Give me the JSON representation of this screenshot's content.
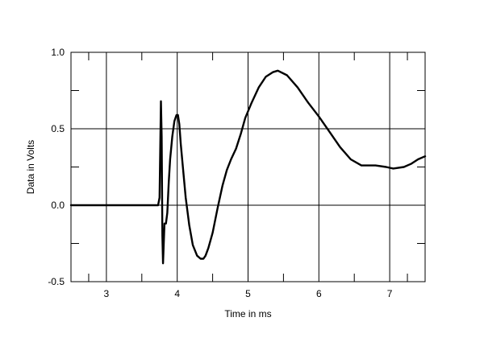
{
  "chart_data": {
    "type": "line",
    "title": "",
    "xlabel": "Time in ms",
    "ylabel": "Data in Volts",
    "xlim": [
      2.5,
      7.5
    ],
    "ylim": [
      -0.5,
      1.0
    ],
    "grid": true,
    "x_ticks": [
      {
        "value": 3,
        "label": "3"
      },
      {
        "value": 4,
        "label": "4"
      },
      {
        "value": 5,
        "label": "5"
      },
      {
        "value": 6,
        "label": "6"
      },
      {
        "value": 7,
        "label": "7"
      }
    ],
    "y_ticks": [
      {
        "value": 1.0,
        "label": "1.0"
      },
      {
        "value": 0.5,
        "label": "0.5"
      },
      {
        "value": 0.0,
        "label": "0.0"
      },
      {
        "value": -0.5,
        "label": "-0.5"
      }
    ],
    "colors": {
      "line": "#000000",
      "grid": "#000000",
      "background": "#ffffff"
    },
    "series": [
      {
        "x": [
          2.5,
          3.0,
          3.5,
          3.73,
          3.75,
          3.77,
          3.78,
          3.79,
          3.8,
          3.81,
          3.82,
          3.84,
          3.86,
          3.88,
          3.9,
          3.93,
          3.96,
          3.99,
          4.01,
          4.03,
          4.05,
          4.08,
          4.12,
          4.17,
          4.22,
          4.28,
          4.33,
          4.37,
          4.4,
          4.44,
          4.5,
          4.57,
          4.64,
          4.7,
          4.76,
          4.83,
          4.9,
          4.96,
          5.05,
          5.15,
          5.25,
          5.35,
          5.42,
          5.55,
          5.7,
          5.85,
          6.0,
          6.15,
          6.3,
          6.45,
          6.6,
          6.8,
          6.95,
          7.05,
          7.2,
          7.3,
          7.4,
          7.5
        ],
        "y": [
          0.0,
          0.0,
          0.0,
          0.0,
          0.05,
          0.68,
          0.45,
          -0.2,
          -0.38,
          -0.25,
          -0.12,
          -0.12,
          -0.05,
          0.15,
          0.3,
          0.45,
          0.55,
          0.59,
          0.59,
          0.53,
          0.4,
          0.25,
          0.05,
          -0.13,
          -0.26,
          -0.33,
          -0.35,
          -0.35,
          -0.33,
          -0.28,
          -0.18,
          -0.02,
          0.13,
          0.23,
          0.3,
          0.37,
          0.47,
          0.57,
          0.67,
          0.77,
          0.84,
          0.87,
          0.88,
          0.85,
          0.77,
          0.67,
          0.58,
          0.48,
          0.38,
          0.3,
          0.26,
          0.26,
          0.25,
          0.24,
          0.25,
          0.27,
          0.3,
          0.32
        ]
      }
    ]
  }
}
